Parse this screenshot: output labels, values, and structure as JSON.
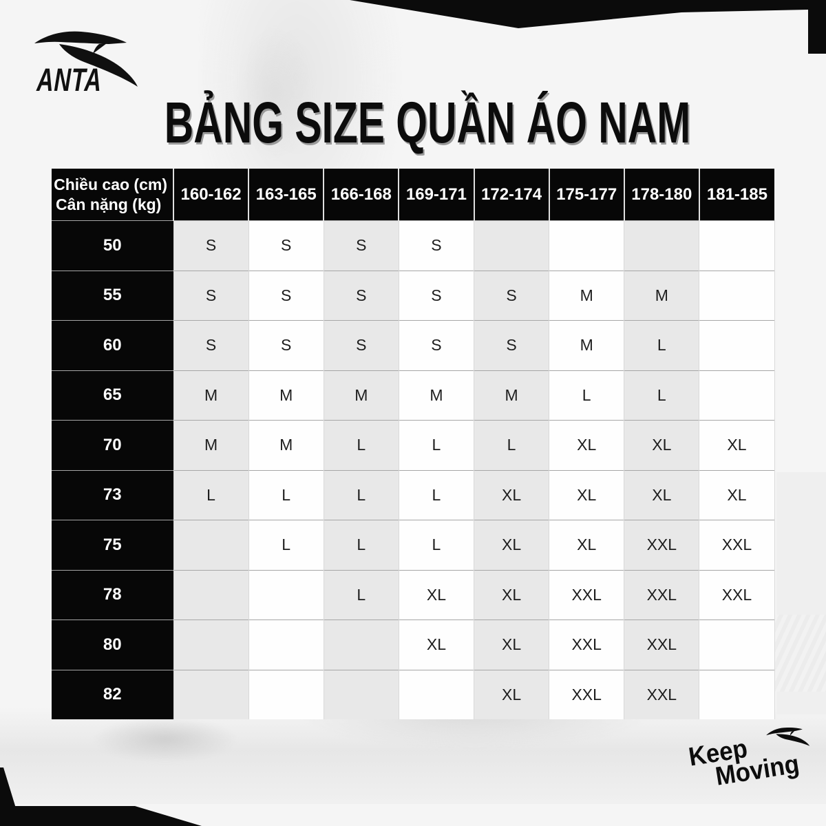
{
  "brand": {
    "name": "ANTA",
    "swoosh_icon": "anta-swoosh"
  },
  "title": "BẢNG SIZE QUẦN ÁO NAM",
  "table": {
    "corner_header": {
      "line1": "Chiều cao (cm)",
      "line2": "Cân nặng (kg)"
    },
    "height_columns": [
      "160-162",
      "163-165",
      "166-168",
      "169-171",
      "172-174",
      "175-177",
      "178-180",
      "181-185"
    ],
    "rows": [
      {
        "weight": "50",
        "sizes": [
          "S",
          "S",
          "S",
          "S",
          "",
          "",
          "",
          ""
        ]
      },
      {
        "weight": "55",
        "sizes": [
          "S",
          "S",
          "S",
          "S",
          "S",
          "M",
          "M",
          ""
        ]
      },
      {
        "weight": "60",
        "sizes": [
          "S",
          "S",
          "S",
          "S",
          "S",
          "M",
          "L",
          ""
        ]
      },
      {
        "weight": "65",
        "sizes": [
          "M",
          "M",
          "M",
          "M",
          "M",
          "L",
          "L",
          ""
        ]
      },
      {
        "weight": "70",
        "sizes": [
          "M",
          "M",
          "L",
          "L",
          "L",
          "XL",
          "XL",
          "XL"
        ]
      },
      {
        "weight": "73",
        "sizes": [
          "L",
          "L",
          "L",
          "L",
          "XL",
          "XL",
          "XL",
          "XL"
        ]
      },
      {
        "weight": "75",
        "sizes": [
          "",
          "L",
          "L",
          "L",
          "XL",
          "XL",
          "XXL",
          "XXL"
        ]
      },
      {
        "weight": "78",
        "sizes": [
          "",
          "",
          "L",
          "XL",
          "XL",
          "XXL",
          "XXL",
          "XXL"
        ]
      },
      {
        "weight": "80",
        "sizes": [
          "",
          "",
          "",
          "XL",
          "XL",
          "XXL",
          "XXL",
          ""
        ]
      },
      {
        "weight": "82",
        "sizes": [
          "",
          "",
          "",
          "",
          "XL",
          "XXL",
          "XXL",
          ""
        ]
      }
    ]
  },
  "footer": {
    "slogan_line1": "Keep",
    "slogan_line2": "Moving",
    "swoosh_icon": "anta-swoosh-small"
  },
  "colors": {
    "header_black": "#070707",
    "cell_gray": "#e8e8e8",
    "cell_white": "#fefefe",
    "background": "#f5f5f5",
    "title_shadow": "#9a9a9a"
  }
}
